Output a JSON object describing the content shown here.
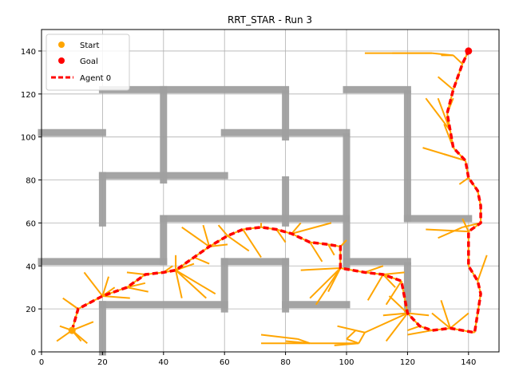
{
  "chart_data": {
    "type": "line",
    "title": "RRT_STAR - Run 3",
    "xlabel": "",
    "ylabel": "",
    "xlim": [
      0,
      150
    ],
    "ylim": [
      0,
      150
    ],
    "xticks": [
      0,
      20,
      40,
      60,
      80,
      100,
      120,
      140
    ],
    "yticks": [
      0,
      20,
      40,
      60,
      80,
      100,
      120,
      140
    ],
    "grid": true,
    "legend_position": "top-left",
    "legend": [
      {
        "label": "Start",
        "kind": "marker",
        "color": "#ffa500"
      },
      {
        "label": "Goal",
        "kind": "marker",
        "color": "#ff0000"
      },
      {
        "label": "Agent 0",
        "kind": "dashed-line",
        "color": "#ff0000"
      }
    ],
    "colors": {
      "tree": "#ffa500",
      "path": "#ff0000",
      "obstacle": "#a0a0a0",
      "grid": "#b0b0b0"
    },
    "start": [
      10,
      10
    ],
    "goal": [
      140,
      140
    ],
    "obstacles": [
      [
        [
          20,
          122
        ],
        [
          80,
          122
        ]
      ],
      [
        [
          0,
          102
        ],
        [
          20,
          102
        ]
      ],
      [
        [
          40,
          122
        ],
        [
          40,
          80
        ]
      ],
      [
        [
          20,
          82
        ],
        [
          60,
          82
        ]
      ],
      [
        [
          20,
          82
        ],
        [
          20,
          60
        ]
      ],
      [
        [
          60,
          102
        ],
        [
          100,
          102
        ]
      ],
      [
        [
          80,
          120
        ],
        [
          80,
          100
        ]
      ],
      [
        [
          100,
          122
        ],
        [
          120,
          122
        ]
      ],
      [
        [
          120,
          120
        ],
        [
          120,
          62
        ]
      ],
      [
        [
          120,
          62
        ],
        [
          140,
          62
        ]
      ],
      [
        [
          100,
          100
        ],
        [
          100,
          40
        ]
      ],
      [
        [
          80,
          80
        ],
        [
          80,
          60
        ]
      ],
      [
        [
          40,
          62
        ],
        [
          100,
          62
        ]
      ],
      [
        [
          40,
          62
        ],
        [
          40,
          42
        ]
      ],
      [
        [
          0,
          42
        ],
        [
          40,
          42
        ]
      ],
      [
        [
          60,
          42
        ],
        [
          80,
          42
        ]
      ],
      [
        [
          60,
          42
        ],
        [
          60,
          20
        ]
      ],
      [
        [
          20,
          22
        ],
        [
          60,
          22
        ]
      ],
      [
        [
          20,
          22
        ],
        [
          20,
          0
        ]
      ],
      [
        [
          80,
          42
        ],
        [
          80,
          20
        ]
      ],
      [
        [
          80,
          22
        ],
        [
          100,
          22
        ]
      ],
      [
        [
          100,
          42
        ],
        [
          120,
          42
        ]
      ],
      [
        [
          120,
          40
        ],
        [
          120,
          20
        ]
      ]
    ],
    "path": {
      "name": "Agent 0",
      "points": [
        [
          10,
          10
        ],
        [
          12,
          20
        ],
        [
          20,
          26
        ],
        [
          28,
          30
        ],
        [
          34,
          36
        ],
        [
          40,
          37
        ],
        [
          44,
          38
        ],
        [
          50,
          44
        ],
        [
          55,
          49
        ],
        [
          61,
          54
        ],
        [
          66,
          57
        ],
        [
          72,
          58
        ],
        [
          77,
          57
        ],
        [
          82,
          55
        ],
        [
          88,
          51
        ],
        [
          94,
          50
        ],
        [
          98,
          49
        ],
        [
          98,
          39
        ],
        [
          106,
          37
        ],
        [
          112,
          36
        ],
        [
          118,
          33
        ],
        [
          120,
          18
        ],
        [
          124,
          12
        ],
        [
          128,
          10
        ],
        [
          134,
          11
        ],
        [
          138,
          10
        ],
        [
          142,
          9
        ],
        [
          143,
          18
        ],
        [
          144,
          27
        ],
        [
          143,
          33
        ],
        [
          140,
          40
        ],
        [
          140,
          47
        ],
        [
          140,
          56
        ],
        [
          144,
          60
        ],
        [
          144,
          68
        ],
        [
          143,
          75
        ],
        [
          140,
          81
        ],
        [
          139,
          89
        ],
        [
          135,
          95
        ],
        [
          134,
          103
        ],
        [
          133,
          111
        ],
        [
          135,
          122
        ],
        [
          138,
          134
        ],
        [
          140,
          140
        ]
      ]
    },
    "tree_edges": [
      [
        [
          10,
          10
        ],
        [
          5,
          5
        ]
      ],
      [
        [
          10,
          10
        ],
        [
          6,
          12
        ]
      ],
      [
        [
          10,
          10
        ],
        [
          13,
          5
        ]
      ],
      [
        [
          10,
          10
        ],
        [
          15,
          4
        ]
      ],
      [
        [
          10,
          10
        ],
        [
          17,
          14
        ]
      ],
      [
        [
          12,
          20
        ],
        [
          7,
          25
        ]
      ],
      [
        [
          12,
          20
        ],
        [
          9,
          23
        ]
      ],
      [
        [
          20,
          26
        ],
        [
          14,
          37
        ]
      ],
      [
        [
          20,
          26
        ],
        [
          24,
          30
        ]
      ],
      [
        [
          20,
          26
        ],
        [
          29,
          25
        ]
      ],
      [
        [
          20,
          26
        ],
        [
          22,
          35
        ]
      ],
      [
        [
          28,
          30
        ],
        [
          34,
          32
        ]
      ],
      [
        [
          28,
          30
        ],
        [
          35,
          28
        ]
      ],
      [
        [
          34,
          36
        ],
        [
          28,
          37
        ]
      ],
      [
        [
          40,
          37
        ],
        [
          43,
          40
        ]
      ],
      [
        [
          44,
          38
        ],
        [
          44,
          45
        ]
      ],
      [
        [
          44,
          38
        ],
        [
          50,
          41
        ]
      ],
      [
        [
          44,
          38
        ],
        [
          46,
          25
        ]
      ],
      [
        [
          44,
          38
        ],
        [
          54,
          25
        ]
      ],
      [
        [
          44,
          38
        ],
        [
          57,
          27
        ]
      ],
      [
        [
          50,
          44
        ],
        [
          55,
          41
        ]
      ],
      [
        [
          55,
          49
        ],
        [
          53,
          59
        ]
      ],
      [
        [
          55,
          49
        ],
        [
          46,
          58
        ]
      ],
      [
        [
          55,
          49
        ],
        [
          61,
          50
        ]
      ],
      [
        [
          61,
          54
        ],
        [
          68,
          47
        ]
      ],
      [
        [
          61,
          54
        ],
        [
          58,
          59
        ]
      ],
      [
        [
          66,
          57
        ],
        [
          72,
          44
        ]
      ],
      [
        [
          72,
          58
        ],
        [
          72,
          60
        ]
      ],
      [
        [
          77,
          57
        ],
        [
          80,
          51
        ]
      ],
      [
        [
          82,
          55
        ],
        [
          85,
          60
        ]
      ],
      [
        [
          82,
          55
        ],
        [
          95,
          60
        ]
      ],
      [
        [
          88,
          51
        ],
        [
          92,
          42
        ]
      ],
      [
        [
          94,
          50
        ],
        [
          96,
          45
        ]
      ],
      [
        [
          98,
          49
        ],
        [
          100,
          52
        ]
      ],
      [
        [
          98,
          39
        ],
        [
          85,
          38
        ]
      ],
      [
        [
          98,
          39
        ],
        [
          88,
          25
        ]
      ],
      [
        [
          98,
          39
        ],
        [
          94,
          28
        ]
      ],
      [
        [
          98,
          39
        ],
        [
          90,
          22
        ]
      ],
      [
        [
          106,
          37
        ],
        [
          112,
          40
        ]
      ],
      [
        [
          112,
          36
        ],
        [
          116,
          30
        ]
      ],
      [
        [
          112,
          36
        ],
        [
          119,
          37
        ]
      ],
      [
        [
          112,
          36
        ],
        [
          107,
          24
        ]
      ],
      [
        [
          118,
          33
        ],
        [
          113,
          22
        ]
      ],
      [
        [
          120,
          18
        ],
        [
          114,
          26
        ]
      ],
      [
        [
          120,
          18
        ],
        [
          112,
          17
        ]
      ],
      [
        [
          120,
          18
        ],
        [
          127,
          17
        ]
      ],
      [
        [
          124,
          12
        ],
        [
          120,
          10
        ]
      ],
      [
        [
          128,
          10
        ],
        [
          120,
          8
        ]
      ],
      [
        [
          134,
          11
        ],
        [
          128,
          18
        ]
      ],
      [
        [
          134,
          11
        ],
        [
          131,
          24
        ]
      ],
      [
        [
          134,
          11
        ],
        [
          140,
          18
        ]
      ],
      [
        [
          120,
          18
        ],
        [
          106,
          9
        ]
      ],
      [
        [
          120,
          18
        ],
        [
          113,
          5
        ]
      ],
      [
        [
          106,
          9
        ],
        [
          97,
          12
        ]
      ],
      [
        [
          106,
          9
        ],
        [
          104,
          4
        ]
      ],
      [
        [
          104,
          4
        ],
        [
          96,
          3
        ]
      ],
      [
        [
          104,
          4
        ],
        [
          88,
          4
        ]
      ],
      [
        [
          88,
          4
        ],
        [
          80,
          5
        ]
      ],
      [
        [
          88,
          4
        ],
        [
          72,
          4
        ]
      ],
      [
        [
          88,
          4
        ],
        [
          84,
          6
        ]
      ],
      [
        [
          84,
          6
        ],
        [
          72,
          8
        ]
      ],
      [
        [
          104,
          4
        ],
        [
          100,
          6
        ]
      ],
      [
        [
          100,
          6
        ],
        [
          103,
          10
        ]
      ],
      [
        [
          143,
          33
        ],
        [
          146,
          45
        ]
      ],
      [
        [
          140,
          40
        ],
        [
          140,
          48
        ]
      ],
      [
        [
          140,
          56
        ],
        [
          138,
          62
        ]
      ],
      [
        [
          144,
          60
        ],
        [
          138,
          58
        ]
      ],
      [
        [
          140,
          56
        ],
        [
          126,
          57
        ]
      ],
      [
        [
          138,
          58
        ],
        [
          130,
          53
        ]
      ],
      [
        [
          140,
          81
        ],
        [
          137,
          78
        ]
      ],
      [
        [
          139,
          89
        ],
        [
          132,
          92
        ]
      ],
      [
        [
          139,
          89
        ],
        [
          125,
          95
        ]
      ],
      [
        [
          135,
          95
        ],
        [
          132,
          106
        ]
      ],
      [
        [
          134,
          103
        ],
        [
          126,
          118
        ]
      ],
      [
        [
          134,
          103
        ],
        [
          130,
          118
        ]
      ],
      [
        [
          133,
          111
        ],
        [
          135,
          118
        ]
      ],
      [
        [
          135,
          122
        ],
        [
          130,
          128
        ]
      ],
      [
        [
          138,
          134
        ],
        [
          135,
          138
        ]
      ],
      [
        [
          135,
          138
        ],
        [
          128,
          139
        ]
      ],
      [
        [
          128,
          139
        ],
        [
          106,
          139
        ]
      ],
      [
        [
          128,
          139
        ],
        [
          115,
          139
        ]
      ],
      [
        [
          135,
          138
        ],
        [
          131,
          138
        ]
      ]
    ]
  }
}
